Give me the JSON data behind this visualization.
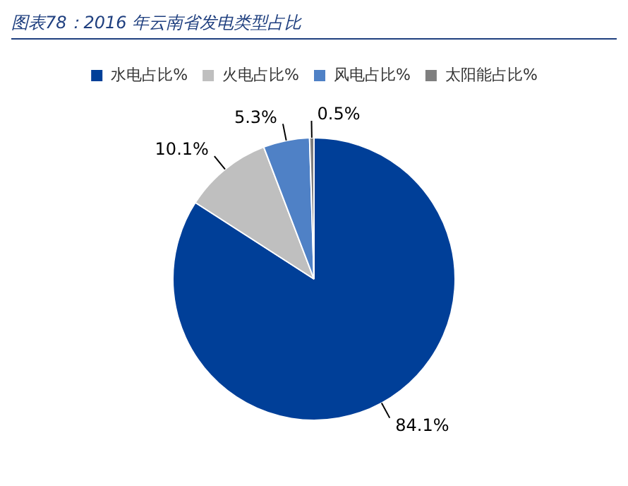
{
  "chart_data": {
    "type": "pie",
    "title": "图表78：2016 年云南省发电类型占比",
    "categories": [
      "水电占比%",
      "火电占比%",
      "风电占比%",
      "太阳能占比%"
    ],
    "values": [
      84.1,
      10.1,
      5.3,
      0.5
    ],
    "colors": [
      "#003f98",
      "#bfbfbf",
      "#4f81c6",
      "#7f7f7f"
    ],
    "value_labels": [
      "84.1%",
      "10.1%",
      "5.3%",
      "0.5%"
    ],
    "legend": "top"
  }
}
